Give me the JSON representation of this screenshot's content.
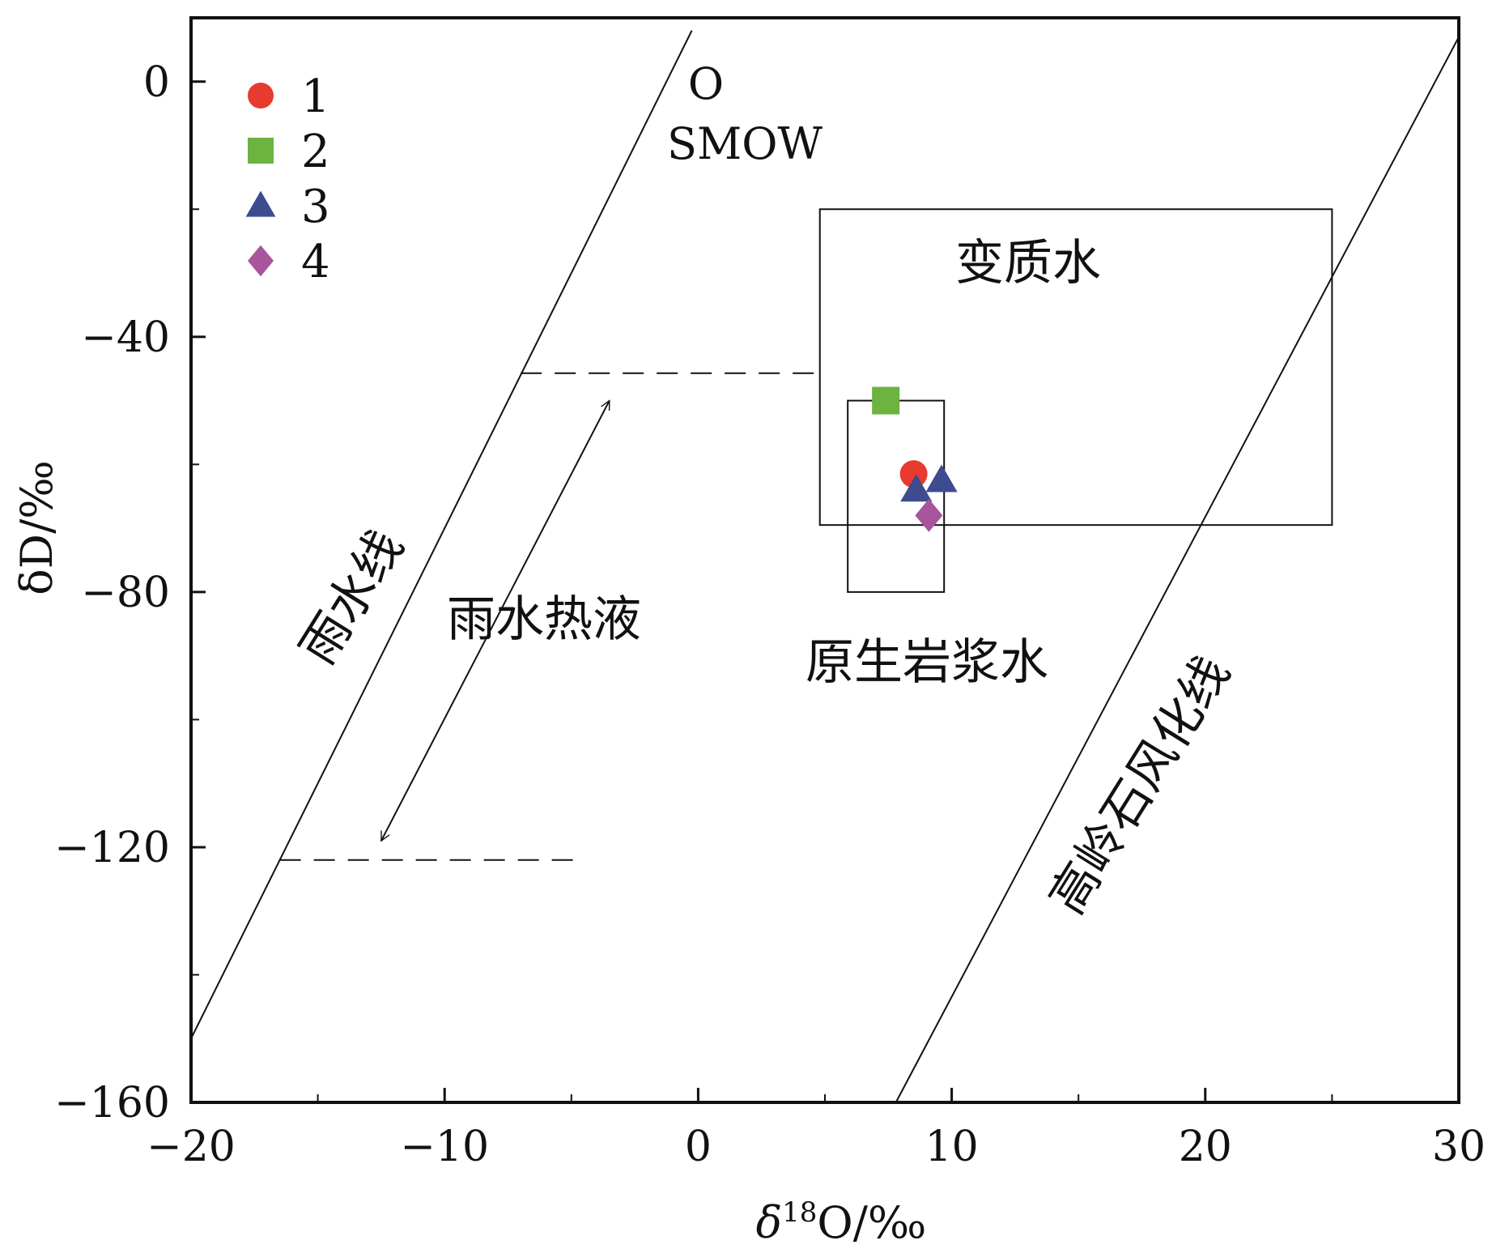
{
  "chart_data": {
    "type": "scatter",
    "xlabel_prefix": "δ",
    "xlabel_sup": "18",
    "xlabel_suffix": "O/‰",
    "ylabel": "δD/‰",
    "xlim": [
      -20,
      30
    ],
    "ylim": [
      -160,
      10
    ],
    "xticks": [
      -20,
      -10,
      0,
      10,
      20,
      30
    ],
    "yticks": [
      0,
      -40,
      -80,
      -120,
      -160
    ],
    "xtick_labels": [
      "−20",
      "−10",
      "0",
      "10",
      "20",
      "30"
    ],
    "ytick_labels": [
      "0",
      "−40",
      "−80",
      "−120",
      "−160"
    ],
    "grid": false,
    "legend_position": "top-left",
    "series": [
      {
        "name": "1",
        "marker": "circle",
        "color": "#e63b2e",
        "points": [
          [
            8.5,
            -61.5
          ]
        ]
      },
      {
        "name": "2",
        "marker": "square",
        "color": "#6db33f",
        "points": [
          [
            7.4,
            -50.0
          ]
        ]
      },
      {
        "name": "3",
        "marker": "triangle",
        "color": "#3d4b8f",
        "points": [
          [
            8.6,
            -64.0
          ],
          [
            9.6,
            -62.5
          ]
        ]
      },
      {
        "name": "4",
        "marker": "diamond",
        "color": "#a8559e",
        "points": [
          [
            9.1,
            -68.0
          ]
        ]
      }
    ],
    "lines": [
      {
        "name": "雨水线",
        "from": [
          -20,
          -150
        ],
        "to": [
          -0.25,
          8
        ]
      },
      {
        "name": "高岭石风化线",
        "from": [
          7.8,
          -160
        ],
        "to": [
          30,
          7
        ]
      }
    ],
    "dashed_lines": [
      {
        "from": [
          -7,
          -45.7
        ],
        "to": [
          4.8,
          -45.7
        ]
      },
      {
        "from": [
          -16.5,
          -122
        ],
        "to": [
          -4.8,
          -122
        ]
      }
    ],
    "arrow": {
      "from": [
        -12.5,
        -119
      ],
      "to": [
        -3.5,
        -50
      ]
    },
    "regions": [
      {
        "name": "变质水",
        "x": [
          4.8,
          25
        ],
        "y": [
          -69.5,
          -20
        ]
      },
      {
        "name": "原生岩浆水",
        "x": [
          5.9,
          9.7
        ],
        "y": [
          -80,
          -50
        ]
      }
    ],
    "annotations": {
      "smow_line1": "O",
      "smow_line2": "SMOW",
      "metamorphic": "变质水",
      "magmatic": "原生岩浆水",
      "meteoric_line": "雨水线",
      "meteoric_hydrothermal": "雨水热液",
      "kaolinite_line": "高岭石风化线"
    }
  }
}
